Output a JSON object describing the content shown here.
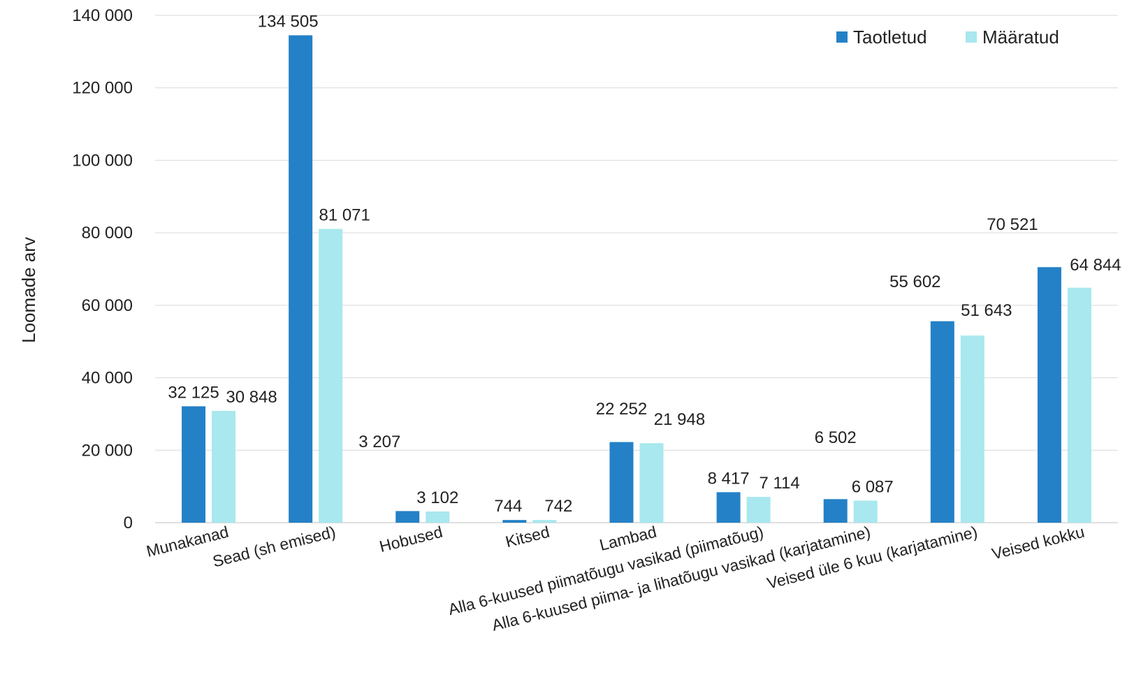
{
  "chart_data": {
    "type": "bar",
    "title": "",
    "xlabel": "",
    "ylabel": "Loomade arv",
    "ylim": [
      0,
      140000
    ],
    "y_ticks": [
      0,
      20000,
      40000,
      60000,
      80000,
      100000,
      120000,
      140000
    ],
    "y_tick_labels": [
      "0",
      "20 000",
      "40 000",
      "60 000",
      "80 000",
      "100 000",
      "120 000",
      "140 000"
    ],
    "grid": true,
    "legend_position": "top-right",
    "categories": [
      "Munakanad",
      "Sead (sh emised)",
      "Hobused",
      "Kitsed",
      "Lambad",
      "Alla  6-kuused piimatõugu vasikad (piimatõug)",
      "Alla  6-kuused piima- ja lihatõugu vasikad  (karjatamine)",
      "Veised üle 6 kuu (karjatamine)",
      "Veised kokku"
    ],
    "series": [
      {
        "name": "Taotletud",
        "color": "#2481C7",
        "values": [
          32125,
          134505,
          3207,
          744,
          22252,
          8417,
          6502,
          55602,
          70521
        ],
        "labels": [
          "32 125",
          "134 505",
          "3 207",
          "744",
          "22 252",
          "8 417",
          "6 502",
          "55 602",
          "70 521"
        ]
      },
      {
        "name": "Määratud",
        "color": "#A8E8EE",
        "values": [
          30848,
          81071,
          3102,
          742,
          21948,
          7114,
          6087,
          51643,
          64844
        ],
        "labels": [
          "30 848",
          "81 071",
          "3 102",
          "742",
          "21 948",
          "7 114",
          "6 087",
          "51 643",
          "64 844"
        ]
      }
    ]
  }
}
